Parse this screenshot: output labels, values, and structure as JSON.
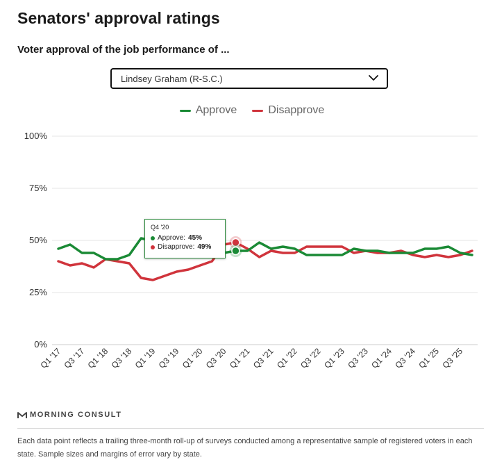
{
  "header": {
    "title": "Senators' approval ratings",
    "subtitle": "Voter approval of the job performance of ..."
  },
  "selector": {
    "selected": "Lindsey Graham (R-S.C.)",
    "icon": "chevron-down-icon"
  },
  "tooltip": {
    "quarter": "Q4 '20",
    "approve_label": "Approve:",
    "approve_value": "45%",
    "disapprove_label": "Disapprove:",
    "disapprove_value": "49%"
  },
  "chart_data": {
    "type": "line",
    "title": "",
    "xlabel": "",
    "ylabel": "",
    "ylim": [
      0,
      100
    ],
    "yticks": [
      0,
      25,
      50,
      75,
      100
    ],
    "ytick_labels": [
      "0%",
      "25%",
      "50%",
      "75%",
      "100%"
    ],
    "grid": true,
    "legend_position": "top-center",
    "x": [
      "Q1 '17",
      "Q2 '17",
      "Q3 '17",
      "Q4 '17",
      "Q1 '18",
      "Q2 '18",
      "Q3 '18",
      "Q4 '18",
      "Q1 '19",
      "Q2 '19",
      "Q3 '19",
      "Q4 '19",
      "Q1 '20",
      "Q2 '20",
      "Q3 '20",
      "Q4 '20",
      "Q1 '21",
      "Q2 '21",
      "Q3 '21",
      "Q4 '21",
      "Q1 '22",
      "Q2 '22",
      "Q3 '22",
      "Q4 '22",
      "Q1 '23",
      "Q2 '23",
      "Q3 '23",
      "Q4 '23",
      "Q1 '24",
      "Q2 '24",
      "Q3 '24",
      "Q4 '24",
      "Q1 '25",
      "Q2 '25",
      "Q3 '25",
      "Q4 '25"
    ],
    "tick_labels": [
      "Q1 '17",
      "Q3 '17",
      "Q1 '18",
      "Q3 '18",
      "Q1 '19",
      "Q3 '19",
      "Q1 '20",
      "Q3 '20",
      "Q1 '21",
      "Q3 '21",
      "Q1 '22",
      "Q3 '22",
      "Q1 '23",
      "Q3 '23",
      "Q1 '24",
      "Q3 '24",
      "Q1 '25",
      "Q3 '25"
    ],
    "highlight": "Q4 '20",
    "series": [
      {
        "name": "Approve",
        "color": "#1a8a35",
        "values": [
          46,
          48,
          44,
          44,
          41,
          41,
          43,
          51,
          50,
          49,
          48,
          47,
          46,
          44,
          44,
          45,
          45,
          49,
          46,
          47,
          46,
          43,
          43,
          43,
          43,
          46,
          45,
          45,
          44,
          44,
          44,
          46,
          46,
          47,
          44,
          43
        ]
      },
      {
        "name": "Disapprove",
        "color": "#d0343c",
        "values": [
          40,
          38,
          39,
          37,
          41,
          40,
          39,
          32,
          31,
          33,
          35,
          36,
          38,
          40,
          48,
          49,
          46,
          42,
          45,
          44,
          44,
          47,
          47,
          47,
          47,
          44,
          45,
          44,
          44,
          45,
          43,
          42,
          43,
          42,
          43,
          45
        ]
      }
    ]
  },
  "brand": {
    "name": "MORNING CONSULT",
    "icon": "morning-consult-logo-icon"
  },
  "footnote": "Each data point reflects a trailing three-month roll-up of surveys conducted among a representative sample of registered voters in each state. Sample sizes and margins of error vary by state."
}
